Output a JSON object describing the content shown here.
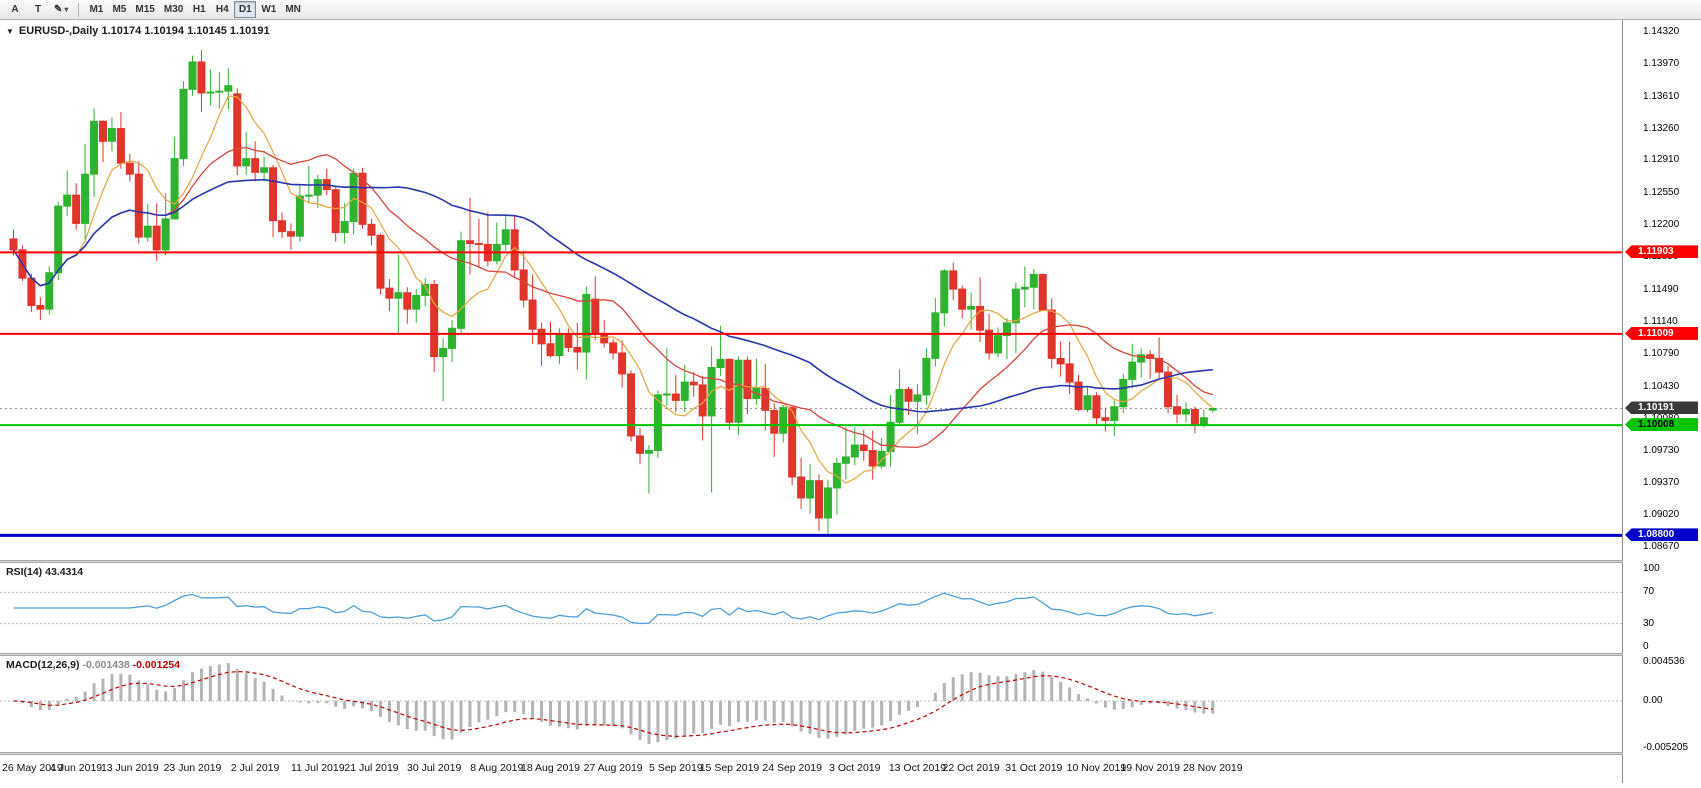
{
  "toolbar": {
    "tool_buttons": [
      {
        "label": "A",
        "name": "tool-a-button"
      },
      {
        "label": "T",
        "name": "tool-t-button"
      }
    ],
    "draw_tools": {
      "icon": "✎",
      "caret": "▾"
    },
    "timeframes": [
      "M1",
      "M5",
      "M15",
      "M30",
      "H1",
      "H4",
      "D1",
      "W1",
      "MN"
    ],
    "active_timeframe": "D1"
  },
  "chart_data": {
    "type": "candlestick",
    "symbol": "EURUSD-",
    "period": "Daily",
    "title_text": "EURUSD-,Daily 1.10174 1.10194 1.10145 1.10191",
    "ohlc": {
      "open": 1.10174,
      "high": 1.10194,
      "low": 1.10145,
      "close": 1.10191
    },
    "price_axis": {
      "labels": [
        "1.14320",
        "1.13970",
        "1.13610",
        "1.13260",
        "1.12910",
        "1.12550",
        "1.12200",
        "1.11850",
        "1.11490",
        "1.11140",
        "1.10790",
        "1.10430",
        "1.10080",
        "1.09730",
        "1.09370",
        "1.09020",
        "1.08670"
      ],
      "max": 1.1445,
      "min": 1.0853
    },
    "date_axis": [
      "26 May 2019",
      "4 Jun 2019",
      "13 Jun 2019",
      "23 Jun 2019",
      "2 Jul 2019",
      "11 Jul 2019",
      "21 Jul 2019",
      "30 Jul 2019",
      "8 Aug 2019",
      "18 Aug 2019",
      "27 Aug 2019",
      "5 Sep 2019",
      "15 Sep 2019",
      "24 Sep 2019",
      "3 Oct 2019",
      "13 Oct 2019",
      "22 Oct 2019",
      "31 Oct 2019",
      "10 Nov 2019",
      "19 Nov 2019",
      "28 Nov 2019"
    ],
    "colors": {
      "bull": "#2eb32e",
      "bear": "#e0352a",
      "ma_fast": "#e8a33d",
      "ma_mid": "#d8453c",
      "ma_slow": "#2936ad",
      "rsi": "#4f9fd8",
      "macd_hist": "#b4b4b4",
      "macd_signal": "#c40000",
      "level_dotted": "#bbbbbb",
      "current_line": "#999999"
    },
    "moving_averages": [
      {
        "period": 7,
        "color_key": "ma_fast",
        "width": 1.2
      },
      {
        "period": 18,
        "color_key": "ma_mid",
        "width": 1.3
      },
      {
        "period": 40,
        "color_key": "ma_slow",
        "width": 1.6
      }
    ],
    "hlines": [
      {
        "price": 1.11903,
        "label": "1.11903",
        "color": "#fe0000",
        "text": "#ffffff",
        "width": 2
      },
      {
        "price": 1.11009,
        "label": "1.11009",
        "color": "#fe0000",
        "text": "#ffffff",
        "width": 2
      },
      {
        "price": 1.10008,
        "label": "1.10008",
        "color": "#00c400",
        "text": "#000000",
        "width": 2
      },
      {
        "price": 1.088,
        "label": "1.08800",
        "color": "#0000c8",
        "text": "#ffffff",
        "width": 3
      }
    ],
    "current_price": {
      "value": 1.10191,
      "label": "1.10191",
      "badge_bg": "#3a3a3a",
      "text": "#ffffff"
    },
    "rsi": {
      "name": "RSI(14)",
      "value": "43.4314",
      "period": 14,
      "scale_labels": [
        "100",
        "70",
        "30",
        "0"
      ],
      "levels": [
        70,
        30
      ],
      "max": 100,
      "min": 0
    },
    "macd": {
      "name": "MACD(12,26,9)",
      "value_main": "-0.001438",
      "value_signal": "-0.001254",
      "fast": 12,
      "slow": 26,
      "signal": 9,
      "scale_labels": [
        "0.004536",
        "0.00",
        "-0.005205"
      ],
      "max": 0.004536,
      "min": -0.005205
    },
    "candles": [
      [
        1.1205,
        1.1215,
        1.1187,
        1.1193
      ],
      [
        1.1193,
        1.1198,
        1.1159,
        1.1162
      ],
      [
        1.1162,
        1.1167,
        1.1125,
        1.1132
      ],
      [
        1.1132,
        1.1141,
        1.1116,
        1.1128
      ],
      [
        1.1128,
        1.1175,
        1.1122,
        1.1168
      ],
      [
        1.1168,
        1.1246,
        1.116,
        1.1241
      ],
      [
        1.1241,
        1.128,
        1.123,
        1.1253
      ],
      [
        1.1253,
        1.1266,
        1.1215,
        1.1222
      ],
      [
        1.1222,
        1.1309,
        1.1201,
        1.1276
      ],
      [
        1.1276,
        1.1348,
        1.1251,
        1.1334
      ],
      [
        1.1334,
        1.1335,
        1.1289,
        1.1312
      ],
      [
        1.1312,
        1.1338,
        1.1301,
        1.1326
      ],
      [
        1.1326,
        1.1344,
        1.1282,
        1.1288
      ],
      [
        1.1288,
        1.1298,
        1.1268,
        1.1276
      ],
      [
        1.1276,
        1.129,
        1.12,
        1.1207
      ],
      [
        1.1207,
        1.1243,
        1.1202,
        1.1219
      ],
      [
        1.1219,
        1.1244,
        1.1181,
        1.1193
      ],
      [
        1.1193,
        1.1255,
        1.1187,
        1.1227
      ],
      [
        1.1227,
        1.1317,
        1.1226,
        1.1293
      ],
      [
        1.1293,
        1.1378,
        1.1285,
        1.1369
      ],
      [
        1.1369,
        1.1406,
        1.1362,
        1.1399
      ],
      [
        1.1399,
        1.1412,
        1.1344,
        1.1365
      ],
      [
        1.1365,
        1.1391,
        1.1351,
        1.1366
      ],
      [
        1.1366,
        1.1388,
        1.1348,
        1.1367
      ],
      [
        1.1367,
        1.1392,
        1.1347,
        1.1373
      ],
      [
        1.1364,
        1.137,
        1.1275,
        1.1285
      ],
      [
        1.1285,
        1.1322,
        1.1275,
        1.1293
      ],
      [
        1.1293,
        1.1312,
        1.1268,
        1.1278
      ],
      [
        1.1278,
        1.1295,
        1.1268,
        1.1283
      ],
      [
        1.1283,
        1.1286,
        1.1207,
        1.1225
      ],
      [
        1.1225,
        1.1234,
        1.1206,
        1.1213
      ],
      [
        1.1213,
        1.1222,
        1.1193,
        1.1208
      ],
      [
        1.1208,
        1.1264,
        1.1202,
        1.1252
      ],
      [
        1.1252,
        1.1285,
        1.1244,
        1.1253
      ],
      [
        1.1253,
        1.1275,
        1.1239,
        1.127
      ],
      [
        1.127,
        1.1282,
        1.1253,
        1.1259
      ],
      [
        1.1259,
        1.1263,
        1.1202,
        1.1212
      ],
      [
        1.1212,
        1.1244,
        1.12,
        1.1224
      ],
      [
        1.1224,
        1.1282,
        1.121,
        1.1277
      ],
      [
        1.1277,
        1.1283,
        1.1216,
        1.1221
      ],
      [
        1.1221,
        1.1227,
        1.1198,
        1.1209
      ],
      [
        1.1209,
        1.1211,
        1.1144,
        1.1151
      ],
      [
        1.1151,
        1.1161,
        1.1126,
        1.114
      ],
      [
        1.114,
        1.1188,
        1.1101,
        1.1146
      ],
      [
        1.1146,
        1.1152,
        1.1112,
        1.1128
      ],
      [
        1.1128,
        1.115,
        1.1113,
        1.1143
      ],
      [
        1.1143,
        1.1162,
        1.1131,
        1.1155
      ],
      [
        1.1155,
        1.116,
        1.1059,
        1.1076
      ],
      [
        1.1076,
        1.1096,
        1.1027,
        1.1085
      ],
      [
        1.1085,
        1.1116,
        1.107,
        1.1107
      ],
      [
        1.1107,
        1.1213,
        1.1101,
        1.1203
      ],
      [
        1.1203,
        1.125,
        1.1166,
        1.12
      ],
      [
        1.12,
        1.1227,
        1.1173,
        1.1199
      ],
      [
        1.1199,
        1.1234,
        1.1175,
        1.1181
      ],
      [
        1.1181,
        1.1223,
        1.1177,
        1.1199
      ],
      [
        1.1199,
        1.123,
        1.1192,
        1.1215
      ],
      [
        1.1215,
        1.123,
        1.1163,
        1.1171
      ],
      [
        1.1171,
        1.1192,
        1.113,
        1.1138
      ],
      [
        1.1138,
        1.1166,
        1.109,
        1.1106
      ],
      [
        1.1106,
        1.1113,
        1.1066,
        1.109
      ],
      [
        1.109,
        1.1114,
        1.1075,
        1.1077
      ],
      [
        1.1077,
        1.1107,
        1.1068,
        1.11
      ],
      [
        1.11,
        1.1107,
        1.1081,
        1.1086
      ],
      [
        1.1086,
        1.1113,
        1.1062,
        1.1081
      ],
      [
        1.1081,
        1.1153,
        1.1051,
        1.1144
      ],
      [
        1.1139,
        1.1164,
        1.1094,
        1.1101
      ],
      [
        1.1101,
        1.1116,
        1.1086,
        1.1091
      ],
      [
        1.1091,
        1.1095,
        1.1073,
        1.108
      ],
      [
        1.108,
        1.1094,
        1.1042,
        1.1057
      ],
      [
        1.1057,
        1.1061,
        1.0983,
        1.0989
      ],
      [
        1.0989,
        1.0998,
        1.0958,
        1.097
      ],
      [
        1.097,
        1.0979,
        1.0926,
        1.0973
      ],
      [
        1.0973,
        1.1039,
        1.0965,
        1.1034
      ],
      [
        1.1034,
        1.1085,
        1.1022,
        1.1035
      ],
      [
        1.1035,
        1.1056,
        1.1015,
        1.1028
      ],
      [
        1.1028,
        1.1067,
        1.1015,
        1.1048
      ],
      [
        1.1048,
        1.1059,
        1.1032,
        1.1045
      ],
      [
        1.1045,
        1.1055,
        1.0984,
        1.1011
      ],
      [
        1.1011,
        1.1087,
        1.0927,
        1.1064
      ],
      [
        1.1064,
        1.111,
        1.1055,
        1.1073
      ],
      [
        1.1073,
        1.1074,
        1.0996,
        1.1004
      ],
      [
        1.1004,
        1.1076,
        1.099,
        1.1072
      ],
      [
        1.1072,
        1.1076,
        1.1013,
        1.103
      ],
      [
        1.103,
        1.1074,
        1.1023,
        1.1041
      ],
      [
        1.1041,
        1.1068,
        1.0995,
        1.1017
      ],
      [
        1.1017,
        1.1025,
        1.0966,
        1.0992
      ],
      [
        1.0992,
        1.1023,
        1.0982,
        1.102
      ],
      [
        1.102,
        1.1023,
        1.0935,
        1.0944
      ],
      [
        1.0944,
        1.0965,
        1.0909,
        1.0921
      ],
      [
        1.0921,
        1.0958,
        1.0904,
        1.094
      ],
      [
        1.094,
        1.0947,
        1.0885,
        1.0899
      ],
      [
        1.0899,
        1.0941,
        1.0879,
        1.0932
      ],
      [
        1.0932,
        1.0965,
        1.0903,
        1.0959
      ],
      [
        1.0959,
        1.0999,
        1.0941,
        1.0966
      ],
      [
        1.0966,
        1.0999,
        1.0957,
        1.0979
      ],
      [
        1.0979,
        1.0996,
        1.0962,
        1.0973
      ],
      [
        1.0973,
        1.0995,
        1.0941,
        1.0956
      ],
      [
        1.0956,
        1.0987,
        1.0953,
        1.0972
      ],
      [
        1.0972,
        1.1034,
        1.0955,
        1.1004
      ],
      [
        1.1004,
        1.1062,
        1.1002,
        1.104
      ],
      [
        1.104,
        1.1043,
        1.1012,
        1.1027
      ],
      [
        1.1027,
        1.1046,
        1.0991,
        1.1034
      ],
      [
        1.1034,
        1.1085,
        1.1023,
        1.1074
      ],
      [
        1.1074,
        1.114,
        1.1065,
        1.1124
      ],
      [
        1.1124,
        1.1172,
        1.1109,
        1.117
      ],
      [
        1.117,
        1.1179,
        1.1138,
        1.115
      ],
      [
        1.115,
        1.1154,
        1.1118,
        1.1128
      ],
      [
        1.1128,
        1.1146,
        1.1106,
        1.1131
      ],
      [
        1.1131,
        1.1163,
        1.1092,
        1.1105
      ],
      [
        1.1105,
        1.1123,
        1.1073,
        1.108
      ],
      [
        1.108,
        1.1108,
        1.1075,
        1.1099
      ],
      [
        1.1099,
        1.1118,
        1.1073,
        1.1113
      ],
      [
        1.1113,
        1.1157,
        1.108,
        1.115
      ],
      [
        1.115,
        1.1175,
        1.113,
        1.1152
      ],
      [
        1.1152,
        1.1172,
        1.1128,
        1.1166
      ],
      [
        1.1166,
        1.1167,
        1.1126,
        1.1127
      ],
      [
        1.1127,
        1.114,
        1.1063,
        1.1074
      ],
      [
        1.1074,
        1.1093,
        1.1054,
        1.1068
      ],
      [
        1.1068,
        1.1092,
        1.1035,
        1.1048
      ],
      [
        1.1048,
        1.1056,
        1.1016,
        1.1018
      ],
      [
        1.1018,
        1.1043,
        1.1015,
        1.1033
      ],
      [
        1.1033,
        1.1037,
        1.1002,
        1.1009
      ],
      [
        1.1009,
        1.102,
        1.0994,
        1.1006
      ],
      [
        1.1006,
        1.1028,
        1.0989,
        1.1021
      ],
      [
        1.1021,
        1.1057,
        1.1014,
        1.1051
      ],
      [
        1.1051,
        1.109,
        1.1041,
        1.107
      ],
      [
        1.107,
        1.1085,
        1.1053,
        1.1078
      ],
      [
        1.1078,
        1.1083,
        1.1052,
        1.1074
      ],
      [
        1.1074,
        1.1097,
        1.1052,
        1.1059
      ],
      [
        1.1059,
        1.1066,
        1.1014,
        1.1021
      ],
      [
        1.1021,
        1.1034,
        1.1003,
        1.1013
      ],
      [
        1.1013,
        1.1026,
        1.1004,
        1.1018
      ],
      [
        1.1018,
        1.1021,
        1.0992,
        1.1001
      ],
      [
        1.1001,
        1.1018,
        1.0998,
        1.1009
      ],
      [
        1.10174,
        1.10194,
        1.10145,
        1.10191
      ]
    ]
  }
}
